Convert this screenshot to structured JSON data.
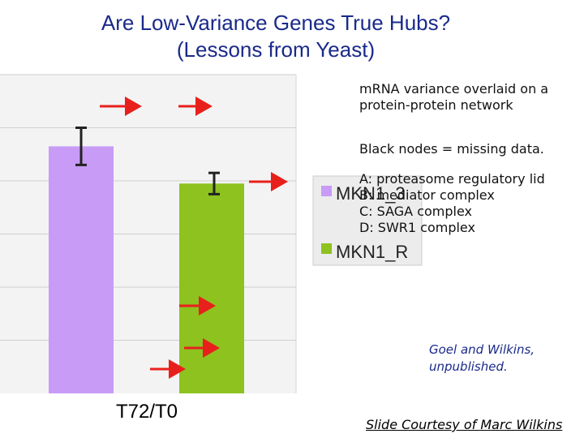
{
  "slide": {
    "title_line1": "Are Low-Variance Genes True Hubs?",
    "title_line2": "(Lessons from Yeast)",
    "notes": {
      "overlay_line1": "mRNA variance overlaid on a",
      "overlay_line2": "protein-protein network",
      "missing": "Black nodes = missing data.",
      "complex_a": "A: proteasome regulatory lid",
      "complex_b": "B: mediator complex",
      "complex_c": "C: SAGA complex",
      "complex_d": "D: SWR1 complex"
    },
    "credit_line1": "Goel and Wilkins,",
    "credit_line2": "unpublished.",
    "courtesy": "Slide Courtesy of Marc Wilkins",
    "arrow_color": "#e8201c"
  },
  "chart_data": {
    "type": "bar",
    "categories": [
      "T72/T0"
    ],
    "series": [
      {
        "name": "MKN1_3",
        "values": [
          0.93
        ],
        "error": [
          0.07
        ],
        "color": "#c89bf7"
      },
      {
        "name": "MKN1_R",
        "values": [
          0.79
        ],
        "error": [
          0.04
        ],
        "color": "#8dc21f"
      }
    ],
    "ylim": [
      0,
      1.2
    ],
    "grid": true,
    "legend_placement": "right"
  }
}
